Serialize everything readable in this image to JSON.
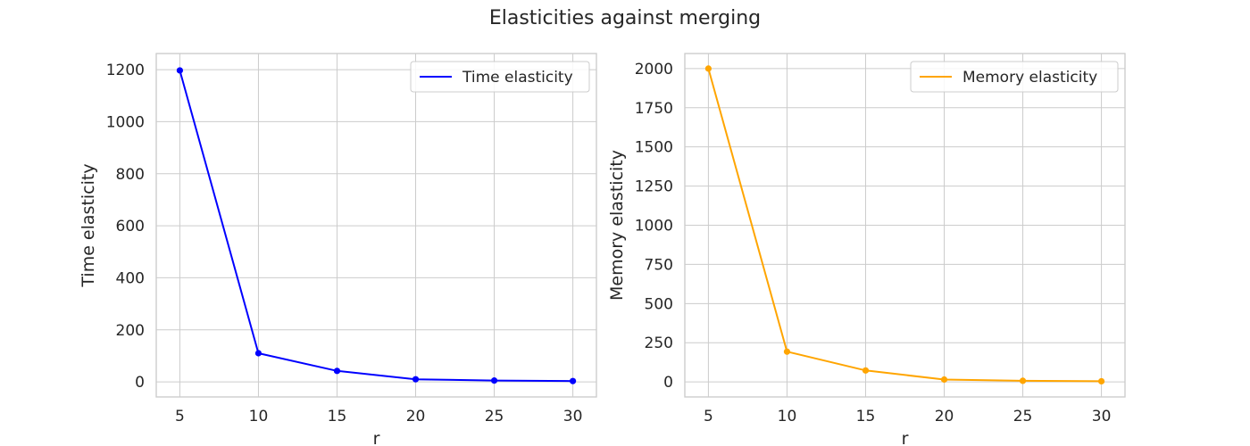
{
  "title": "Elasticities against merging",
  "chart_data": [
    {
      "type": "line",
      "xlabel": "r",
      "ylabel": "Time elasticity",
      "x": [
        5,
        10,
        15,
        20,
        25,
        30
      ],
      "xticks": [
        5,
        10,
        15,
        20,
        25,
        30
      ],
      "yticks": [
        0,
        200,
        400,
        600,
        800,
        1000,
        1200
      ],
      "xlim": [
        3.5,
        31.5
      ],
      "ylim": [
        -58,
        1262
      ],
      "grid": true,
      "legend_position": "top-right",
      "series": [
        {
          "name": "Time elasticity",
          "color": "#0000ff",
          "values": [
            1197,
            110,
            42,
            10,
            5,
            3
          ]
        }
      ]
    },
    {
      "type": "line",
      "xlabel": "r",
      "ylabel": "Memory elasticity",
      "x": [
        5,
        10,
        15,
        20,
        25,
        30
      ],
      "xticks": [
        5,
        10,
        15,
        20,
        25,
        30
      ],
      "yticks": [
        0,
        250,
        500,
        750,
        1000,
        1250,
        1500,
        1750,
        2000
      ],
      "xlim": [
        3.5,
        31.5
      ],
      "ylim": [
        -96,
        2096
      ],
      "grid": true,
      "legend_position": "top-right",
      "series": [
        {
          "name": "Memory elasticity",
          "color": "#ffa500",
          "values": [
            2000,
            193,
            73,
            15,
            7,
            4
          ]
        }
      ]
    }
  ]
}
